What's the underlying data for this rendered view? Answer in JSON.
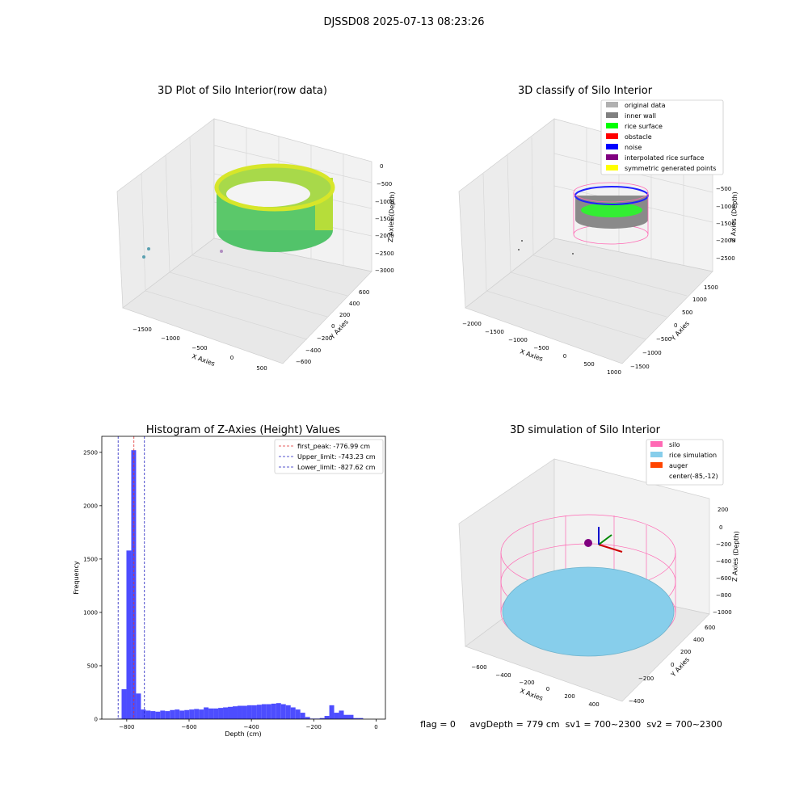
{
  "suptitle": "DJSSD08 2025-07-13 08:23:26",
  "status_line": "flag = 0     avgDepth = 779 cm  sv1 = 700~2300  sv2 = 700~2300",
  "colors": {
    "hist_bar": "#4d4dff",
    "first_peak": "#e03030",
    "limits": "#2020c0",
    "silo": "#ff69b4",
    "rice_sim": "#87ceeb",
    "auger": "#ff4500",
    "inner_wall": "#808080",
    "rice_surface": "#00ff00",
    "noise": "#0000ff"
  },
  "chart_data": [
    {
      "type": "scatter",
      "title": "3D Plot of Silo Interior(row data)",
      "xlabel": "X Axies",
      "ylabel": "Y Axies",
      "zlabel": "Z Axies (Depth)",
      "xticks": [
        "−1500",
        "−1000",
        "−500",
        "0",
        "500"
      ],
      "yticks": [
        "−600",
        "−400",
        "−200",
        "0",
        "200",
        "400",
        "600"
      ],
      "zticks": [
        "0",
        "−500",
        "−1000",
        "−1500",
        "−2000",
        "−2500",
        "−3000"
      ]
    },
    {
      "type": "scatter",
      "title": "3D classify of Silo Interior",
      "xlabel": "X Axies",
      "ylabel": "Y Axies",
      "zlabel": "Z Axies (Depth)",
      "xticks": [
        "−2000",
        "−1500",
        "−1000",
        "−500",
        "0",
        "500",
        "1000"
      ],
      "yticks": [
        "−1500",
        "−1000",
        "−500",
        "0",
        "500",
        "1000",
        "1500"
      ],
      "zticks": [
        "−500",
        "−1000",
        "−1500",
        "−2000",
        "−2500"
      ],
      "legend": [
        {
          "label": "original data",
          "color": "#b0b0b0"
        },
        {
          "label": "inner wall",
          "color": "#808080"
        },
        {
          "label": "rice surface",
          "color": "#00ff00"
        },
        {
          "label": "obstacle",
          "color": "#ff0000"
        },
        {
          "label": "noise",
          "color": "#0000ff"
        },
        {
          "label": "interpolated rice surface",
          "color": "#800080"
        },
        {
          "label": "symmetric generated points",
          "color": "#ffff00"
        }
      ],
      "legend_position": "top-right"
    },
    {
      "type": "bar",
      "title": "Histogram of Z-Axies (Height) Values",
      "xlabel": "Depth (cm)",
      "ylabel": "Frequency",
      "xlim": [
        -880,
        30
      ],
      "ylim": [
        0,
        2650
      ],
      "xticks": [
        -800,
        -600,
        -400,
        -200,
        0
      ],
      "yticks": [
        0,
        500,
        1000,
        1500,
        2000,
        2500
      ],
      "bin_width": 15.5,
      "bin_starts": [
        -832,
        -816.5,
        -801,
        -785.5,
        -770,
        -754.5,
        -739,
        -723.5,
        -708,
        -692.5,
        -677,
        -661.5,
        -646,
        -630.5,
        -615,
        -599.5,
        -584,
        -568.5,
        -553,
        -537.5,
        -522,
        -506.5,
        -491,
        -475.5,
        -460,
        -444.5,
        -429,
        -413.5,
        -398,
        -382.5,
        -367,
        -351.5,
        -336,
        -320.5,
        -305,
        -289.5,
        -274,
        -258.5,
        -243,
        -227.5,
        -212,
        -196.5,
        -181,
        -165.5,
        -150,
        -134.5,
        -119,
        -103.5,
        -88,
        -72.5,
        -57,
        -41.5,
        -26,
        -10.5
      ],
      "values": [
        5,
        280,
        1580,
        2520,
        240,
        90,
        80,
        75,
        70,
        80,
        75,
        85,
        90,
        80,
        85,
        90,
        95,
        90,
        110,
        100,
        100,
        105,
        110,
        115,
        120,
        125,
        125,
        130,
        130,
        135,
        140,
        140,
        145,
        150,
        140,
        130,
        110,
        90,
        60,
        20,
        5,
        5,
        10,
        30,
        130,
        60,
        80,
        40,
        40,
        10,
        10,
        0,
        0,
        0
      ],
      "lines": [
        {
          "label": "first_peak: -776.99 cm",
          "x": -776.99,
          "color": "#e03030"
        },
        {
          "label": "Upper_limit: -743.23 cm",
          "x": -743.23,
          "color": "#2020c0"
        },
        {
          "label": "Lower_limit: -827.62 cm",
          "x": -827.62,
          "color": "#2020c0"
        }
      ],
      "legend_position": "top-right"
    },
    {
      "type": "scatter",
      "title": "3D simulation of Silo Interior",
      "xlabel": "X Axies",
      "ylabel": "Y Axies",
      "zlabel": "Z Axies (Depth)",
      "xticks": [
        "−600",
        "−400",
        "−200",
        "0",
        "200",
        "400"
      ],
      "yticks": [
        "−400",
        "−200",
        "0",
        "200",
        "400",
        "600"
      ],
      "zticks": [
        "200",
        "0",
        "−200",
        "−400",
        "−600",
        "−800",
        "−1000"
      ],
      "legend": [
        {
          "label": "silo",
          "color": "#ff69b4"
        },
        {
          "label": "rice simulation",
          "color": "#87ceeb"
        },
        {
          "label": "auger",
          "color": "#ff4500"
        },
        {
          "label": "center(-85,-12)",
          "color": ""
        }
      ],
      "legend_position": "top-right"
    }
  ]
}
